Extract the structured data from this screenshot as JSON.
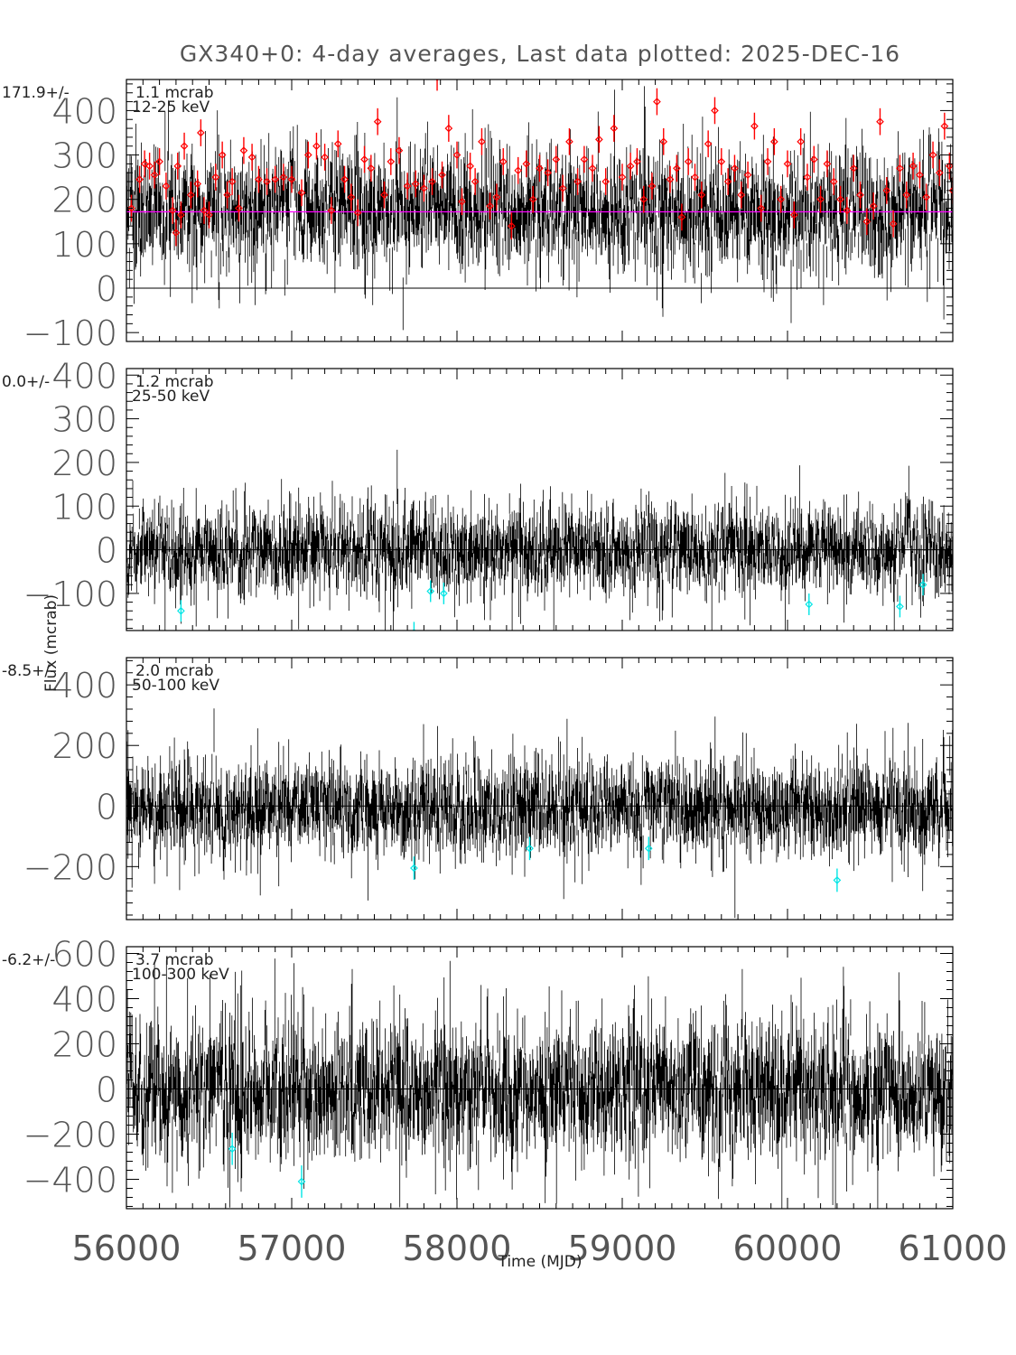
{
  "chart_data": {
    "type": "scatter",
    "title": "GX340+0:  4-day averages,  Last data plotted: 2025-DEC-16",
    "xlabel": "Time (MJD)",
    "ylabel": "Flux (mcrab)",
    "xlim": [
      56000,
      61000
    ],
    "x_ticks": [
      "56000",
      "57000",
      "58000",
      "59000",
      "60000",
      "61000"
    ],
    "bin_days": 4,
    "panels": [
      {
        "band": "12-25 keV",
        "mean_label": "171.9+/-",
        "err_label": "1.1 mcrab",
        "mean": 171.9,
        "ylim": [
          -120,
          470
        ],
        "y_ticks": [
          -100,
          0,
          100,
          200,
          300,
          400
        ],
        "noise_sigma": 70,
        "error_bar": 55,
        "highlight_color": "#ff0000",
        "mean_line_color": "#ff00ff",
        "highlighted_points": [
          [
            56030,
            180
          ],
          [
            56080,
            245
          ],
          [
            56110,
            280
          ],
          [
            56140,
            275
          ],
          [
            56170,
            255
          ],
          [
            56200,
            285
          ],
          [
            56240,
            230
          ],
          [
            56280,
            175
          ],
          [
            56300,
            125
          ],
          [
            56310,
            275
          ],
          [
            56330,
            165
          ],
          [
            56350,
            320
          ],
          [
            56390,
            210
          ],
          [
            56430,
            235
          ],
          [
            56450,
            350
          ],
          [
            56470,
            175
          ],
          [
            56500,
            165
          ],
          [
            56540,
            250
          ],
          [
            56580,
            300
          ],
          [
            56610,
            210
          ],
          [
            56640,
            240
          ],
          [
            56680,
            180
          ],
          [
            56710,
            310
          ],
          [
            56760,
            295
          ],
          [
            56800,
            245
          ],
          [
            56850,
            240
          ],
          [
            56900,
            245
          ],
          [
            56950,
            250
          ],
          [
            57000,
            245
          ],
          [
            57060,
            215
          ],
          [
            57100,
            300
          ],
          [
            57150,
            320
          ],
          [
            57200,
            295
          ],
          [
            57240,
            175
          ],
          [
            57280,
            325
          ],
          [
            57320,
            245
          ],
          [
            57360,
            205
          ],
          [
            57400,
            170
          ],
          [
            57440,
            290
          ],
          [
            57480,
            270
          ],
          [
            57520,
            375
          ],
          [
            57560,
            210
          ],
          [
            57600,
            285
          ],
          [
            57650,
            310
          ],
          [
            57700,
            230
          ],
          [
            57750,
            235
          ],
          [
            57800,
            225
          ],
          [
            57850,
            240
          ],
          [
            57880,
            475
          ],
          [
            57910,
            255
          ],
          [
            57950,
            360
          ],
          [
            58000,
            300
          ],
          [
            58030,
            195
          ],
          [
            58080,
            275
          ],
          [
            58110,
            240
          ],
          [
            58150,
            330
          ],
          [
            58200,
            185
          ],
          [
            58240,
            205
          ],
          [
            58280,
            285
          ],
          [
            58330,
            140
          ],
          [
            58370,
            265
          ],
          [
            58420,
            280
          ],
          [
            58460,
            200
          ],
          [
            58500,
            270
          ],
          [
            58550,
            260
          ],
          [
            58600,
            290
          ],
          [
            58640,
            225
          ],
          [
            58680,
            330
          ],
          [
            58730,
            240
          ],
          [
            58770,
            290
          ],
          [
            58820,
            270
          ],
          [
            58860,
            335
          ],
          [
            58900,
            240
          ],
          [
            58950,
            360
          ],
          [
            59000,
            250
          ],
          [
            59050,
            275
          ],
          [
            59090,
            285
          ],
          [
            59130,
            200
          ],
          [
            59180,
            230
          ],
          [
            59210,
            420
          ],
          [
            59250,
            330
          ],
          [
            59290,
            245
          ],
          [
            59330,
            270
          ],
          [
            59360,
            160
          ],
          [
            59400,
            285
          ],
          [
            59440,
            250
          ],
          [
            59480,
            210
          ],
          [
            59520,
            325
          ],
          [
            59560,
            400
          ],
          [
            59600,
            285
          ],
          [
            59640,
            240
          ],
          [
            59680,
            270
          ],
          [
            59720,
            210
          ],
          [
            59760,
            255
          ],
          [
            59800,
            365
          ],
          [
            59840,
            180
          ],
          [
            59880,
            285
          ],
          [
            59920,
            330
          ],
          [
            59960,
            200
          ],
          [
            60000,
            280
          ],
          [
            60040,
            165
          ],
          [
            60080,
            330
          ],
          [
            60120,
            250
          ],
          [
            60160,
            290
          ],
          [
            60200,
            200
          ],
          [
            60240,
            280
          ],
          [
            60280,
            240
          ],
          [
            60320,
            200
          ],
          [
            60360,
            175
          ],
          [
            60400,
            270
          ],
          [
            60440,
            210
          ],
          [
            60480,
            150
          ],
          [
            60520,
            185
          ],
          [
            60560,
            375
          ],
          [
            60600,
            220
          ],
          [
            60640,
            145
          ],
          [
            60680,
            270
          ],
          [
            60720,
            210
          ],
          [
            60760,
            275
          ],
          [
            60800,
            255
          ],
          [
            60840,
            205
          ],
          [
            60880,
            300
          ],
          [
            60920,
            260
          ],
          [
            60950,
            365
          ],
          [
            60980,
            275
          ],
          [
            61000,
            220
          ]
        ]
      },
      {
        "band": "25-50 keV",
        "mean_label": "0.0+/-",
        "err_label": "1.2 mcrab",
        "mean": 0.0,
        "ylim": [
          -185,
          415
        ],
        "y_ticks": [
          -100,
          0,
          100,
          200,
          300,
          400
        ],
        "noise_sigma": 50,
        "error_bar": 45,
        "highlight_color": "#00e5e5",
        "highlighted_points": [
          [
            56330,
            -140
          ],
          [
            57740,
            -190
          ],
          [
            57840,
            -95
          ],
          [
            57920,
            -100
          ],
          [
            60130,
            -125
          ],
          [
            60680,
            -130
          ],
          [
            60820,
            -80
          ]
        ]
      },
      {
        "band": "50-100 keV",
        "mean_label": "-8.5+/-",
        "err_label": "2.0 mcrab",
        "mean": -8.5,
        "ylim": [
          -375,
          490
        ],
        "y_ticks": [
          -200,
          0,
          200,
          400
        ],
        "noise_sigma": 75,
        "error_bar": 70,
        "highlight_color": "#00e5e5",
        "highlighted_points": [
          [
            57740,
            -205
          ],
          [
            58440,
            -140
          ],
          [
            59160,
            -140
          ],
          [
            60300,
            -245
          ]
        ]
      },
      {
        "band": "100-300 keV",
        "mean_label": "-6.2+/-",
        "err_label": "3.7 mcrab",
        "mean": -6.2,
        "ylim": [
          -530,
          630
        ],
        "y_ticks": [
          -400,
          -200,
          0,
          200,
          400,
          600
        ],
        "noise_sigma": 150,
        "error_bar": 130,
        "highlight_color": "#00e5e5",
        "highlighted_points": [
          [
            56640,
            -265
          ],
          [
            57060,
            -410
          ]
        ]
      }
    ]
  }
}
